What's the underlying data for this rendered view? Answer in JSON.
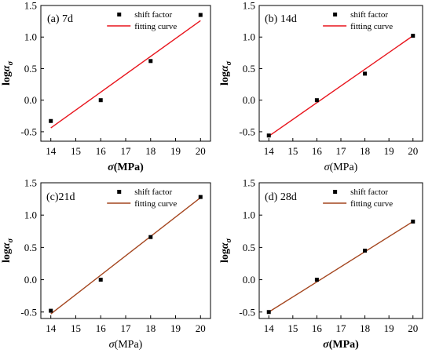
{
  "chart_data": [
    {
      "type": "scatter",
      "panel_label": "(a) 7d",
      "xlabel": "σ(MPa)",
      "ylabel": "logα_σ",
      "xlim": [
        13.6,
        20.4
      ],
      "ylim": [
        -0.65,
        1.5
      ],
      "xticks": [
        14,
        15,
        16,
        17,
        18,
        19,
        20
      ],
      "yticks": [
        -0.5,
        0.0,
        0.5,
        1.0,
        1.5
      ],
      "legend_position": "top-right",
      "series": [
        {
          "name": "shift factor",
          "kind": "points",
          "color": "#000000",
          "x": [
            14,
            16,
            18,
            20
          ],
          "y": [
            -0.33,
            0.0,
            0.62,
            1.35
          ]
        },
        {
          "name": "fitting curve",
          "kind": "line",
          "color": "#e8141c",
          "x": [
            14,
            20
          ],
          "y": [
            -0.44,
            1.26
          ]
        }
      ]
    },
    {
      "type": "scatter",
      "panel_label": "(b) 14d",
      "xlabel": "σ(MPa)",
      "ylabel": "logα_σ",
      "xlim": [
        13.6,
        20.4
      ],
      "ylim": [
        -0.65,
        1.5
      ],
      "xticks": [
        14,
        15,
        16,
        17,
        18,
        19,
        20
      ],
      "yticks": [
        -0.5,
        0.0,
        0.5,
        1.0,
        1.5
      ],
      "legend_position": "top-right",
      "series": [
        {
          "name": "shift factor",
          "kind": "points",
          "color": "#000000",
          "x": [
            14,
            16,
            18,
            20
          ],
          "y": [
            -0.56,
            0.0,
            0.42,
            1.02
          ]
        },
        {
          "name": "fitting curve",
          "kind": "line",
          "color": "#e8141c",
          "x": [
            14,
            20
          ],
          "y": [
            -0.57,
            1.02
          ]
        }
      ]
    },
    {
      "type": "scatter",
      "panel_label": "(c)21d",
      "xlabel": "σ(MPa)",
      "ylabel": "logα_σ",
      "xlim": [
        13.6,
        20.4
      ],
      "ylim": [
        -0.6,
        1.5
      ],
      "xticks": [
        14,
        15,
        16,
        17,
        18,
        19,
        20
      ],
      "yticks": [
        -0.5,
        0.0,
        0.5,
        1.0,
        1.5
      ],
      "legend_position": "top-right",
      "series": [
        {
          "name": "shift factor",
          "kind": "points",
          "color": "#000000",
          "x": [
            14,
            16,
            18,
            20
          ],
          "y": [
            -0.48,
            0.0,
            0.66,
            1.28
          ]
        },
        {
          "name": "fitting curve",
          "kind": "line",
          "color": "#a4451e",
          "x": [
            14,
            20
          ],
          "y": [
            -0.53,
            1.27
          ]
        }
      ]
    },
    {
      "type": "scatter",
      "panel_label": "(d) 28d",
      "xlabel": "σ(MPa)",
      "ylabel": "logα_σ",
      "xlim": [
        13.6,
        20.4
      ],
      "ylim": [
        -0.6,
        1.5
      ],
      "xticks": [
        14,
        15,
        16,
        17,
        18,
        19,
        20
      ],
      "yticks": [
        -0.5,
        0.0,
        0.5,
        1.0,
        1.5
      ],
      "legend_position": "top-right",
      "series": [
        {
          "name": "shift factor",
          "kind": "points",
          "color": "#000000",
          "x": [
            14,
            16,
            18,
            20
          ],
          "y": [
            -0.5,
            0.0,
            0.45,
            0.9
          ]
        },
        {
          "name": "fitting curve",
          "kind": "line",
          "color": "#a4451e",
          "x": [
            14,
            20
          ],
          "y": [
            -0.5,
            0.9
          ]
        }
      ]
    }
  ]
}
